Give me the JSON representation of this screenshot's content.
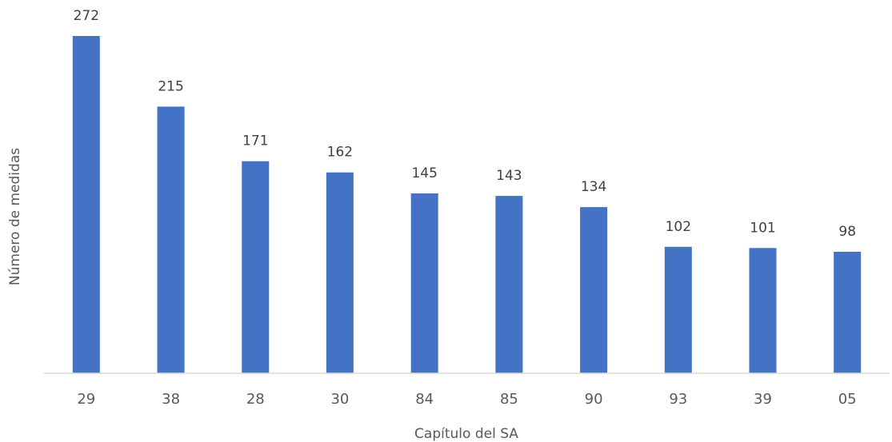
{
  "chart_data": {
    "type": "bar",
    "categories": [
      "29",
      "38",
      "28",
      "30",
      "84",
      "85",
      "90",
      "93",
      "39",
      "05"
    ],
    "values": [
      272,
      215,
      171,
      162,
      145,
      143,
      134,
      102,
      101,
      98
    ],
    "title": "",
    "xlabel": "Capítulo del SA",
    "ylabel": "Número de medidas",
    "ylim": [
      0,
      272
    ],
    "grid": false,
    "legend": "none",
    "bar_color": "#4472C4",
    "axis_color": "#D9D9D9"
  }
}
